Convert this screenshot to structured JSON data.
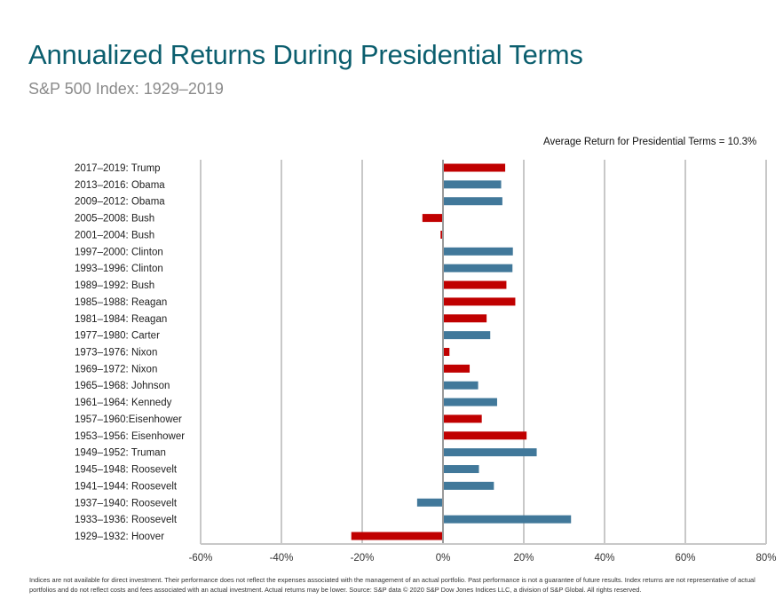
{
  "header": {
    "title": "Annualized Returns During Presidential Terms",
    "subtitle": "S&P 500 Index: 1929–2019"
  },
  "chart_data": {
    "type": "bar",
    "orientation": "horizontal",
    "title": "Annualized Returns During Presidential Terms",
    "subtitle": "S&P 500 Index: 1929–2019",
    "annotation": "Average Return for Presidential Terms = 10.3%",
    "xlabel": "",
    "ylabel": "",
    "xlim": [
      -60,
      80
    ],
    "x_ticks": [
      -60,
      -40,
      -20,
      0,
      20,
      40,
      60,
      80
    ],
    "x_tick_labels": [
      "-60%",
      "-40%",
      "-20%",
      "0%",
      "20%",
      "40%",
      "60%",
      "80%"
    ],
    "grid": true,
    "legend": "none",
    "party_colors": {
      "Republican": "#c00000",
      "Democrat": "#41789a"
    },
    "categories": [
      "2017–2019: Trump",
      "2013–2016: Obama",
      "2009–2012: Obama",
      "2005–2008: Bush",
      "2001–2004: Bush",
      "1997–2000: Clinton",
      "1993–1996: Clinton",
      "1989–1992: Bush",
      "1985–1988: Reagan",
      "1981–1984: Reagan",
      "1977–1980: Carter",
      "1973–1976: Nixon",
      "1969–1972: Nixon",
      "1965–1968: Johnson",
      "1961–1964: Kennedy",
      "1957–1960:Eisenhower",
      "1953–1956: Eisenhower",
      "1949–1952: Truman",
      "1945–1948: Roosevelt",
      "1941–1944: Roosevelt",
      "1937–1940: Roosevelt",
      "1933–1936: Roosevelt",
      "1929–1932: Hoover"
    ],
    "values": [
      15.4,
      14.4,
      14.7,
      -5.1,
      -0.6,
      17.3,
      17.2,
      15.7,
      17.9,
      10.8,
      11.7,
      1.6,
      6.6,
      8.7,
      13.4,
      9.6,
      20.7,
      23.2,
      8.9,
      12.6,
      -6.4,
      31.7,
      -22.7
    ],
    "party": [
      "Republican",
      "Democrat",
      "Democrat",
      "Republican",
      "Republican",
      "Democrat",
      "Democrat",
      "Republican",
      "Republican",
      "Republican",
      "Democrat",
      "Republican",
      "Republican",
      "Democrat",
      "Democrat",
      "Republican",
      "Republican",
      "Democrat",
      "Democrat",
      "Democrat",
      "Democrat",
      "Democrat",
      "Republican"
    ],
    "unit": "%"
  },
  "footer": {
    "disclaimer": "Indices are not available for direct investment. Their performance does not reflect the expenses associated with the management of an actual portfolio. Past performance is not a guarantee of future results. Index returns are not representative of actual portfolios and do not reflect costs and fees associated with an actual investment. Actual returns may be lower. Source: S&P data © 2020 S&P Dow Jones Indices LLC, a division of S&P Global. All rights reserved."
  }
}
